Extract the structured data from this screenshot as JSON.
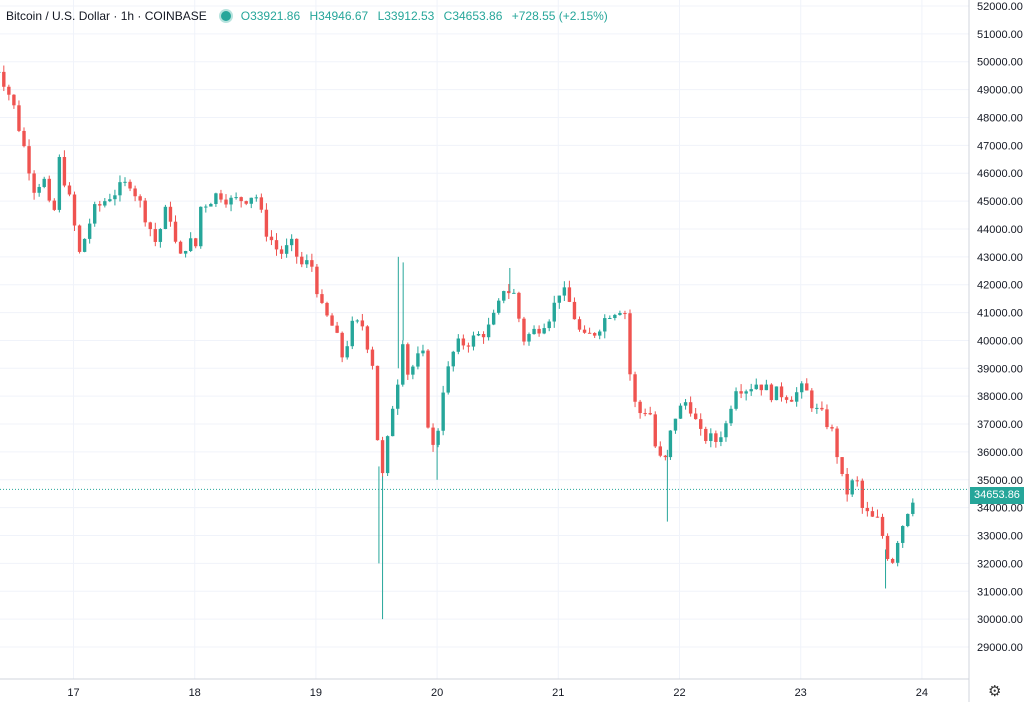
{
  "header": {
    "symbol": "Bitcoin / U.S. Dollar · 1h · COINBASE",
    "ohlc": {
      "o_label": "O",
      "o": "33921.86",
      "h_label": "H",
      "h": "34946.67",
      "l_label": "L",
      "l": "33912.53",
      "c_label": "C",
      "c": "34653.86",
      "change": "+728.55 (+2.15%)"
    }
  },
  "price_tag": "34653.86",
  "chart_data": {
    "type": "candlestick",
    "x_ticks": [
      "17",
      "18",
      "19",
      "20",
      "21",
      "22",
      "23",
      "24"
    ],
    "y_ticks": [
      "52000.00",
      "51000.00",
      "50000.00",
      "49000.00",
      "48000.00",
      "47000.00",
      "46000.00",
      "45000.00",
      "44000.00",
      "43000.00",
      "42000.00",
      "41000.00",
      "40000.00",
      "39000.00",
      "38000.00",
      "37000.00",
      "36000.00",
      "35000.00",
      "34000.00",
      "33000.00",
      "32000.00",
      "31000.00",
      "30000.00",
      "29000.00"
    ],
    "ylim": [
      28500,
      52100
    ],
    "last_price": 34653.86,
    "colors": {
      "up": "#26a69a",
      "down": "#ef5350",
      "grid": "#f0f3fa"
    },
    "grid": true,
    "close_path": [
      [
        16.3,
        49400
      ],
      [
        16.38,
        49800
      ],
      [
        16.5,
        48500
      ],
      [
        16.6,
        46800
      ],
      [
        16.68,
        45400
      ],
      [
        16.75,
        45900
      ],
      [
        16.83,
        44100
      ],
      [
        16.88,
        46500
      ],
      [
        16.96,
        45200
      ],
      [
        17.05,
        43100
      ],
      [
        17.16,
        44600
      ],
      [
        17.3,
        45200
      ],
      [
        17.47,
        45700
      ],
      [
        17.6,
        44400
      ],
      [
        17.68,
        43500
      ],
      [
        17.78,
        44900
      ],
      [
        17.87,
        42800
      ],
      [
        17.95,
        43700
      ],
      [
        18.0,
        43100
      ],
      [
        18.05,
        44800
      ],
      [
        18.2,
        45300
      ],
      [
        18.3,
        45000
      ],
      [
        18.42,
        45100
      ],
      [
        18.5,
        45300
      ],
      [
        18.58,
        44000
      ],
      [
        18.7,
        43100
      ],
      [
        18.8,
        43400
      ],
      [
        18.88,
        42700
      ],
      [
        18.96,
        42800
      ],
      [
        19.05,
        41100
      ],
      [
        19.15,
        40400
      ],
      [
        19.22,
        39400
      ],
      [
        19.3,
        40500
      ],
      [
        19.38,
        40600
      ],
      [
        19.48,
        39000
      ],
      [
        19.53,
        34600
      ],
      [
        19.58,
        35900
      ],
      [
        19.62,
        37500
      ],
      [
        19.67,
        38200
      ],
      [
        19.7,
        40600
      ],
      [
        19.76,
        38800
      ],
      [
        19.82,
        39200
      ],
      [
        19.88,
        39600
      ],
      [
        19.93,
        36800
      ],
      [
        19.98,
        35900
      ],
      [
        20.05,
        38300
      ],
      [
        20.15,
        39800
      ],
      [
        20.28,
        40000
      ],
      [
        20.42,
        40400
      ],
      [
        20.5,
        41100
      ],
      [
        20.55,
        41900
      ],
      [
        20.65,
        41600
      ],
      [
        20.7,
        40000
      ],
      [
        20.82,
        40400
      ],
      [
        20.95,
        41000
      ],
      [
        21.0,
        41800
      ],
      [
        21.07,
        41600
      ],
      [
        21.13,
        40900
      ],
      [
        21.2,
        40000
      ],
      [
        21.3,
        40300
      ],
      [
        21.42,
        41000
      ],
      [
        21.52,
        41200
      ],
      [
        21.57,
        40900
      ],
      [
        21.6,
        38000
      ],
      [
        21.67,
        37400
      ],
      [
        21.75,
        37600
      ],
      [
        21.8,
        36200
      ],
      [
        21.87,
        35400
      ],
      [
        21.95,
        37200
      ],
      [
        22.0,
        37500
      ],
      [
        22.07,
        37900
      ],
      [
        22.17,
        36600
      ],
      [
        22.3,
        36400
      ],
      [
        22.4,
        37100
      ],
      [
        22.45,
        38400
      ],
      [
        22.55,
        38300
      ],
      [
        22.65,
        38500
      ],
      [
        22.75,
        38100
      ],
      [
        22.85,
        38100
      ],
      [
        22.93,
        38000
      ],
      [
        23.03,
        38300
      ],
      [
        23.12,
        37500
      ],
      [
        23.2,
        37200
      ],
      [
        23.28,
        36500
      ],
      [
        23.33,
        35100
      ],
      [
        23.4,
        34400
      ],
      [
        23.45,
        35300
      ],
      [
        23.5,
        34000
      ],
      [
        23.58,
        33600
      ],
      [
        23.65,
        33500
      ],
      [
        23.7,
        32500
      ],
      [
        23.75,
        32000
      ],
      [
        23.8,
        32900
      ],
      [
        23.88,
        33900
      ],
      [
        23.95,
        34650
      ]
    ],
    "spikes": [
      {
        "x": 19.52,
        "low": 32000
      },
      {
        "x": 19.55,
        "low": 30000
      },
      {
        "x": 19.68,
        "high": 43000
      },
      {
        "x": 19.72,
        "high": 42800
      },
      {
        "x": 20.0,
        "low": 35000
      },
      {
        "x": 20.6,
        "high": 42600
      },
      {
        "x": 21.9,
        "low": 33500
      },
      {
        "x": 23.7,
        "low": 31100
      }
    ]
  }
}
